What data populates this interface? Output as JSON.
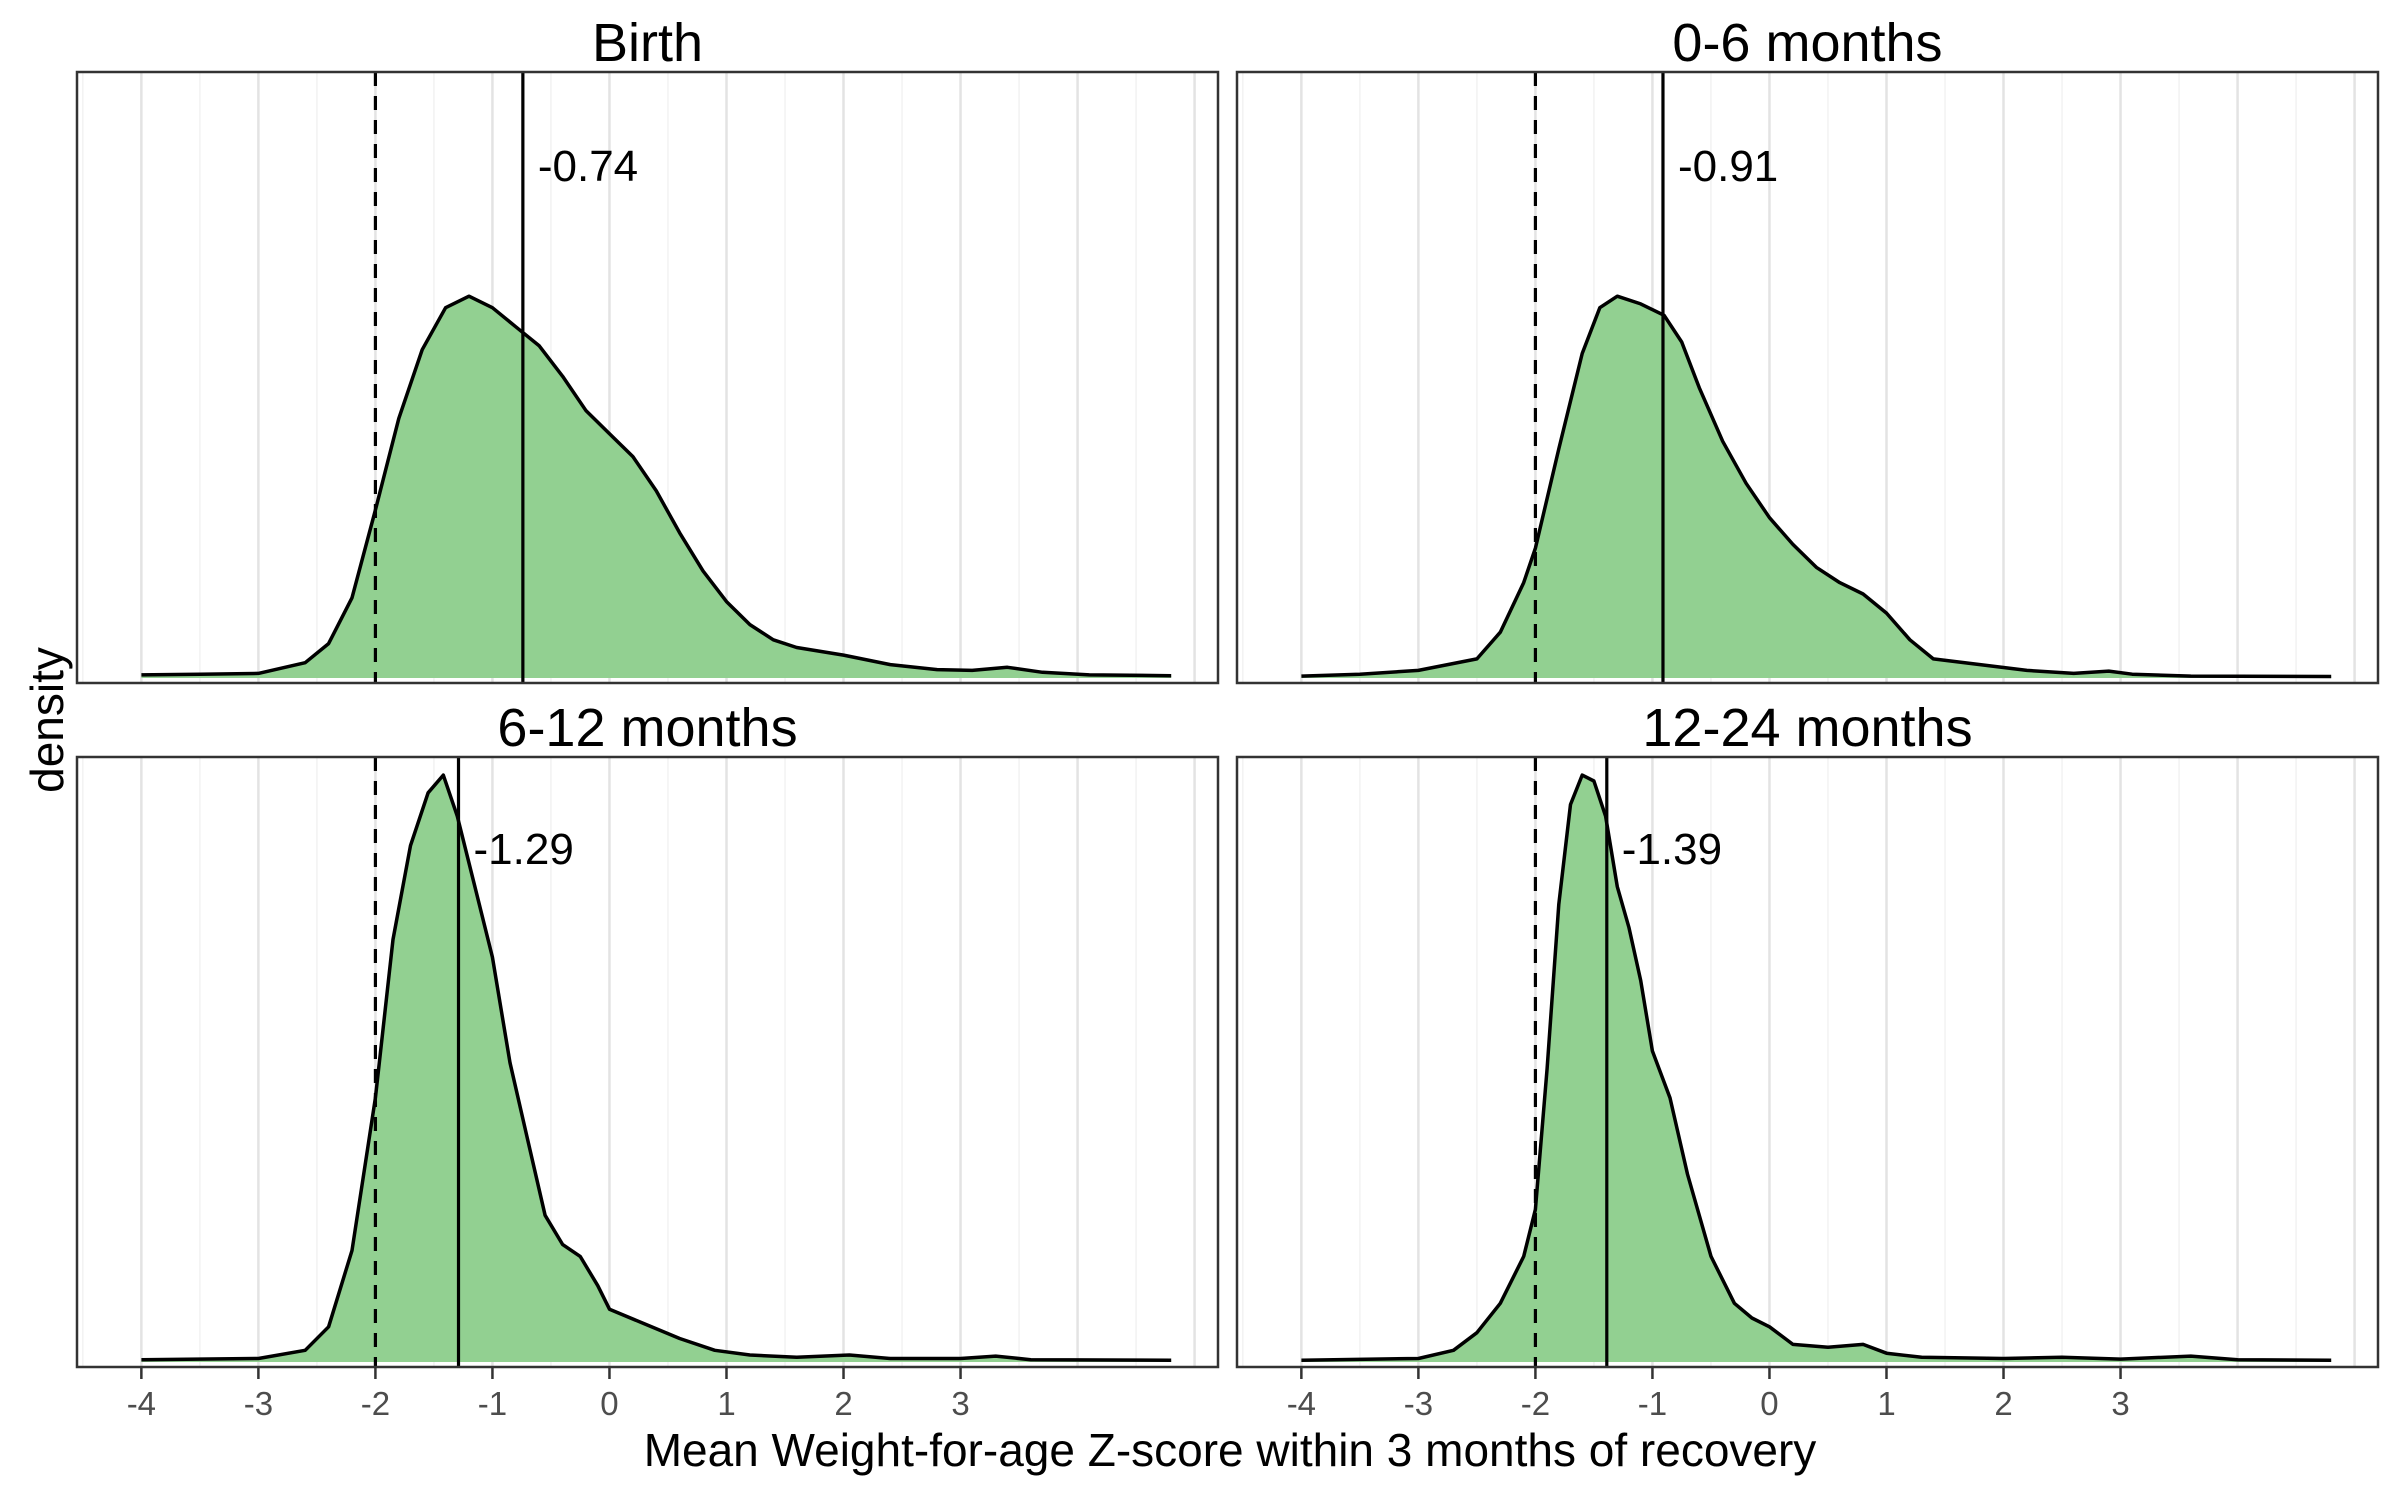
{
  "chart_data": {
    "type": "area",
    "xlabel": "Mean Weight-for-age Z-score within 3 months of recovery",
    "ylabel": "density",
    "xlim": [
      -4.55,
      5.2
    ],
    "x_ticks": [
      -4,
      -3,
      -2,
      -1,
      0,
      1,
      2,
      3
    ],
    "x_tick_labels": [
      "-4",
      "-3",
      "-2",
      "-1",
      "0",
      "1",
      "2",
      "3"
    ],
    "grid": "vertical major and minor, light grey",
    "y_ticks_shown": false,
    "fill_color": "#92d091",
    "line_color": "#000000",
    "reference_line": {
      "x": -2,
      "style": "dashed"
    },
    "panels": [
      {
        "title": "Birth",
        "mean": -0.74,
        "mean_label": "-0.74",
        "curve": [
          [
            -4.0,
            0.008
          ],
          [
            -3.5,
            0.01
          ],
          [
            -3.0,
            0.012
          ],
          [
            -2.6,
            0.04
          ],
          [
            -2.4,
            0.09
          ],
          [
            -2.2,
            0.21
          ],
          [
            -2.0,
            0.44
          ],
          [
            -1.8,
            0.68
          ],
          [
            -1.6,
            0.86
          ],
          [
            -1.4,
            0.97
          ],
          [
            -1.2,
            1.0
          ],
          [
            -1.0,
            0.97
          ],
          [
            -0.8,
            0.92
          ],
          [
            -0.6,
            0.87
          ],
          [
            -0.4,
            0.79
          ],
          [
            -0.2,
            0.7
          ],
          [
            0.0,
            0.64
          ],
          [
            0.2,
            0.58
          ],
          [
            0.4,
            0.49
          ],
          [
            0.6,
            0.38
          ],
          [
            0.8,
            0.28
          ],
          [
            1.0,
            0.2
          ],
          [
            1.2,
            0.14
          ],
          [
            1.4,
            0.1
          ],
          [
            1.6,
            0.08
          ],
          [
            2.0,
            0.06
          ],
          [
            2.4,
            0.035
          ],
          [
            2.8,
            0.022
          ],
          [
            3.1,
            0.02
          ],
          [
            3.4,
            0.028
          ],
          [
            3.7,
            0.015
          ],
          [
            4.1,
            0.008
          ],
          [
            4.8,
            0.006
          ]
        ]
      },
      {
        "title": "0-6 months",
        "mean": -0.91,
        "mean_label": "-0.91",
        "curve": [
          [
            -4.0,
            0.005
          ],
          [
            -3.5,
            0.01
          ],
          [
            -3.0,
            0.02
          ],
          [
            -2.5,
            0.05
          ],
          [
            -2.3,
            0.12
          ],
          [
            -2.1,
            0.25
          ],
          [
            -2.0,
            0.34
          ],
          [
            -1.8,
            0.6
          ],
          [
            -1.6,
            0.85
          ],
          [
            -1.45,
            0.97
          ],
          [
            -1.3,
            1.0
          ],
          [
            -1.1,
            0.98
          ],
          [
            -0.9,
            0.95
          ],
          [
            -0.75,
            0.88
          ],
          [
            -0.6,
            0.76
          ],
          [
            -0.4,
            0.62
          ],
          [
            -0.2,
            0.51
          ],
          [
            0.0,
            0.42
          ],
          [
            0.2,
            0.35
          ],
          [
            0.4,
            0.29
          ],
          [
            0.6,
            0.25
          ],
          [
            0.8,
            0.22
          ],
          [
            1.0,
            0.17
          ],
          [
            1.2,
            0.1
          ],
          [
            1.4,
            0.05
          ],
          [
            1.8,
            0.035
          ],
          [
            2.2,
            0.02
          ],
          [
            2.6,
            0.012
          ],
          [
            2.9,
            0.018
          ],
          [
            3.1,
            0.01
          ],
          [
            3.6,
            0.005
          ],
          [
            4.8,
            0.004
          ]
        ]
      },
      {
        "title": "6-12 months",
        "mean": -1.29,
        "mean_label": "-1.29",
        "curve": [
          [
            -4.0,
            0.004
          ],
          [
            -3.0,
            0.006
          ],
          [
            -2.6,
            0.02
          ],
          [
            -2.4,
            0.06
          ],
          [
            -2.2,
            0.19
          ],
          [
            -2.0,
            0.45
          ],
          [
            -1.85,
            0.72
          ],
          [
            -1.7,
            0.88
          ],
          [
            -1.55,
            0.97
          ],
          [
            -1.42,
            1.0
          ],
          [
            -1.3,
            0.93
          ],
          [
            -1.15,
            0.81
          ],
          [
            -1.0,
            0.69
          ],
          [
            -0.85,
            0.51
          ],
          [
            -0.7,
            0.38
          ],
          [
            -0.55,
            0.25
          ],
          [
            -0.4,
            0.2
          ],
          [
            -0.25,
            0.18
          ],
          [
            -0.1,
            0.13
          ],
          [
            0.0,
            0.09
          ],
          [
            0.3,
            0.065
          ],
          [
            0.6,
            0.04
          ],
          [
            0.9,
            0.02
          ],
          [
            1.2,
            0.012
          ],
          [
            1.6,
            0.008
          ],
          [
            2.05,
            0.012
          ],
          [
            2.4,
            0.006
          ],
          [
            3.0,
            0.006
          ],
          [
            3.3,
            0.01
          ],
          [
            3.6,
            0.004
          ],
          [
            4.8,
            0.003
          ]
        ]
      },
      {
        "title": "12-24 months",
        "mean": -1.39,
        "mean_label": "-1.39",
        "curve": [
          [
            -4.0,
            0.003
          ],
          [
            -3.0,
            0.006
          ],
          [
            -2.7,
            0.02
          ],
          [
            -2.5,
            0.05
          ],
          [
            -2.3,
            0.1
          ],
          [
            -2.1,
            0.18
          ],
          [
            -2.0,
            0.26
          ],
          [
            -1.9,
            0.5
          ],
          [
            -1.8,
            0.78
          ],
          [
            -1.7,
            0.95
          ],
          [
            -1.6,
            1.0
          ],
          [
            -1.5,
            0.99
          ],
          [
            -1.4,
            0.93
          ],
          [
            -1.3,
            0.81
          ],
          [
            -1.2,
            0.74
          ],
          [
            -1.1,
            0.65
          ],
          [
            -1.0,
            0.53
          ],
          [
            -0.85,
            0.45
          ],
          [
            -0.7,
            0.32
          ],
          [
            -0.5,
            0.18
          ],
          [
            -0.3,
            0.1
          ],
          [
            -0.15,
            0.075
          ],
          [
            0.0,
            0.06
          ],
          [
            0.2,
            0.03
          ],
          [
            0.5,
            0.025
          ],
          [
            0.8,
            0.03
          ],
          [
            1.0,
            0.015
          ],
          [
            1.3,
            0.008
          ],
          [
            2.0,
            0.006
          ],
          [
            2.5,
            0.008
          ],
          [
            3.0,
            0.005
          ],
          [
            3.6,
            0.01
          ],
          [
            4.0,
            0.004
          ],
          [
            4.8,
            0.003
          ]
        ]
      }
    ]
  }
}
